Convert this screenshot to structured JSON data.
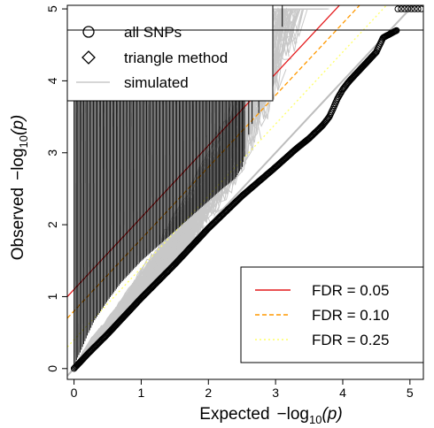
{
  "chart_data": {
    "type": "scatter",
    "xlabel_main": "Expected",
    "xlabel_prefix": "−log",
    "xlabel_sub": "10",
    "xlabel_suffix": "(p)",
    "ylabel_main": "Observed",
    "ylabel_prefix": "−log",
    "ylabel_sub": "10",
    "ylabel_suffix": "(p)",
    "xlim": [
      -0.1,
      5.2
    ],
    "ylim": [
      -0.15,
      5.05
    ],
    "x_ticks": [
      0,
      1,
      2,
      3,
      4,
      5
    ],
    "y_ticks": [
      0,
      1,
      2,
      3,
      4,
      5
    ],
    "legend_top": {
      "position": "top-left",
      "entries": [
        {
          "label": "all SNPs",
          "symbol": "circle"
        },
        {
          "label": "triangle method",
          "symbol": "diamond"
        },
        {
          "label": "simulated",
          "symbol": "line",
          "color": "#c8c8c8"
        }
      ]
    },
    "legend_fdr": {
      "position": "bottom-right",
      "entries": [
        {
          "label": "FDR = 0.05",
          "color": "#e41a1c",
          "dash": "solid"
        },
        {
          "label": "FDR = 0.10",
          "color": "#ff9900",
          "dash": "dashed"
        },
        {
          "label": "FDR = 0.25",
          "color": "#ffff66",
          "dash": "dotted"
        }
      ]
    },
    "fdr_lines": [
      {
        "label": "FDR = 0.05",
        "intercept": 1.1,
        "slope": 1.0,
        "color": "#e41a1c"
      },
      {
        "label": "FDR = 0.10",
        "intercept": 0.8,
        "slope": 1.0,
        "color": "#ff9900"
      },
      {
        "label": "FDR = 0.25",
        "intercept": 0.4,
        "slope": 1.0,
        "color": "#ffff66"
      }
    ],
    "diagonal": {
      "slope": 1.0,
      "intercept": 0.0,
      "color": "#bdbdbd"
    },
    "all_snps": [
      [
        0,
        0
      ],
      [
        0.2,
        0.2
      ],
      [
        0.5,
        0.48
      ],
      [
        0.8,
        0.78
      ],
      [
        1.0,
        0.98
      ],
      [
        1.5,
        1.45
      ],
      [
        2.0,
        1.95
      ],
      [
        2.5,
        2.4
      ],
      [
        3.0,
        2.8
      ],
      [
        3.3,
        3.05
      ],
      [
        3.5,
        3.2
      ],
      [
        3.7,
        3.38
      ],
      [
        3.8,
        3.5
      ],
      [
        3.85,
        3.6
      ],
      [
        3.92,
        3.75
      ],
      [
        4.0,
        3.88
      ],
      [
        4.1,
        4.0
      ],
      [
        4.2,
        4.1
      ],
      [
        4.3,
        4.2
      ],
      [
        4.4,
        4.3
      ],
      [
        4.5,
        4.4
      ],
      [
        4.55,
        4.5
      ],
      [
        4.6,
        4.6
      ],
      [
        4.7,
        4.65
      ],
      [
        4.8,
        4.7
      ]
    ],
    "all_snps_top": [
      [
        4.82,
        5.0
      ],
      [
        5.2,
        5.0
      ]
    ],
    "triangle_method": [
      [
        0,
        0
      ],
      [
        0.1,
        0.2
      ],
      [
        0.2,
        0.42
      ],
      [
        0.3,
        0.62
      ],
      [
        0.5,
        0.9
      ],
      [
        0.7,
        1.15
      ],
      [
        1.0,
        1.45
      ],
      [
        1.3,
        1.7
      ],
      [
        1.6,
        1.95
      ],
      [
        1.9,
        2.2
      ],
      [
        2.2,
        2.45
      ],
      [
        2.4,
        2.6
      ],
      [
        2.5,
        2.75
      ],
      [
        2.55,
        2.95
      ],
      [
        2.6,
        3.2
      ],
      [
        2.65,
        3.35
      ],
      [
        2.75,
        3.5
      ],
      [
        2.8,
        4.1
      ],
      [
        2.85,
        4.3
      ],
      [
        2.9,
        4.5
      ],
      [
        2.95,
        4.7
      ],
      [
        3.1,
        4.7
      ],
      [
        3.3,
        5.0
      ],
      [
        3.55,
        5.0
      ]
    ]
  }
}
